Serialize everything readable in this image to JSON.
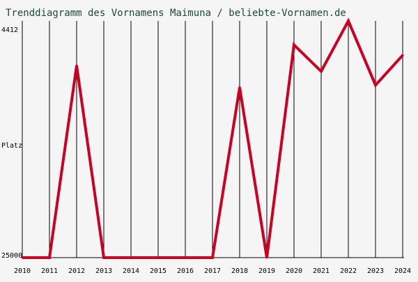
{
  "chart_data": {
    "type": "line",
    "title": "Trenddiagramm des Vornamens Maimuna / beliebte-Vornamen.de",
    "xlabel": "",
    "ylabel": "Platz",
    "y_tick_top": "4412",
    "y_tick_bottom": "25000",
    "y_scale": "inverted",
    "ylim": [
      25000,
      4412
    ],
    "grid": "vertical",
    "line_color": "#cc0022",
    "x": [
      "2010",
      "2011",
      "2012",
      "2013",
      "2014",
      "2015",
      "2016",
      "2017",
      "2018",
      "2019",
      "2020",
      "2021",
      "2022",
      "2023",
      "2024"
    ],
    "series": [
      {
        "name": "",
        "values": [
          25000,
          25000,
          8300,
          25000,
          25000,
          25000,
          25000,
          25000,
          10200,
          25000,
          6500,
          8800,
          4412,
          10000,
          7400
        ]
      }
    ]
  }
}
